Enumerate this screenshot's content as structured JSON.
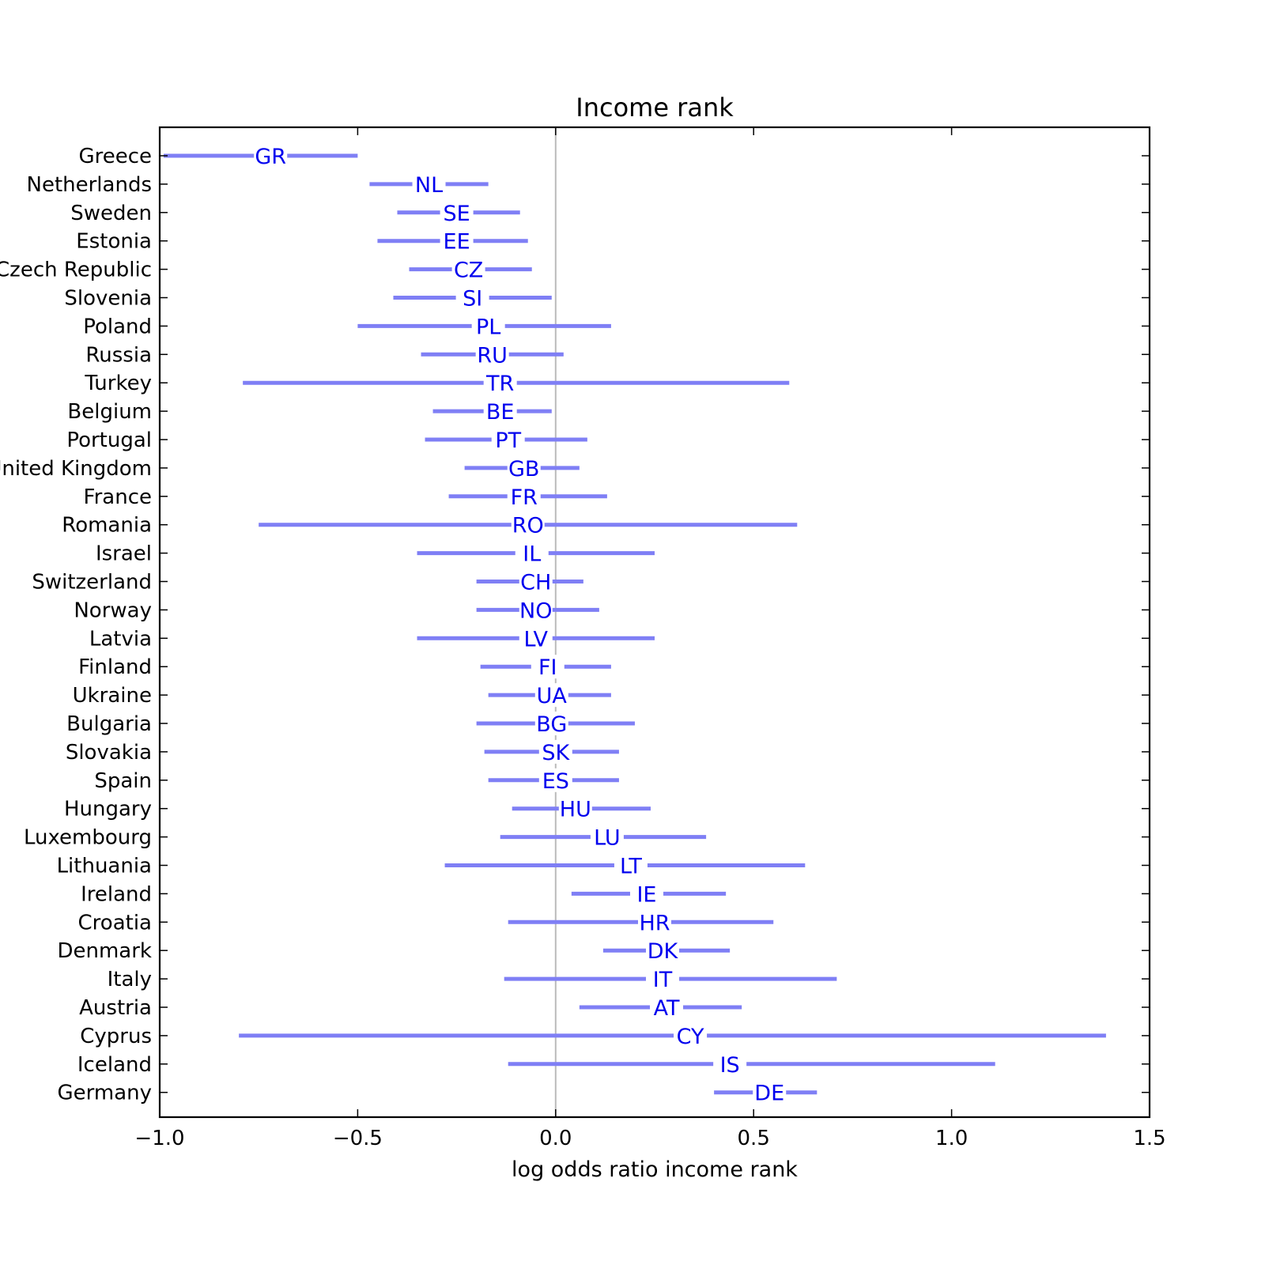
{
  "chart_data": {
    "type": "errorbar",
    "title": "Income rank",
    "xlabel": "log odds ratio income rank",
    "ylabel": "",
    "xlim": [
      -1.0,
      1.5
    ],
    "xticks": [
      -1.0,
      -0.5,
      0.0,
      0.5,
      1.0,
      1.5
    ],
    "xtick_labels": [
      "−1.0",
      "−0.5",
      "0.0",
      "0.5",
      "1.0",
      "1.5"
    ],
    "reference_line_x": 0.0,
    "colors": {
      "interval": "#7f7ff5",
      "code": "#0000ee",
      "reference": "#bbbbbb",
      "frame": "#000000"
    },
    "rows": [
      {
        "country": "Greece",
        "code": "GR",
        "low": -0.99,
        "mid": -0.72,
        "high": -0.5
      },
      {
        "country": "Netherlands",
        "code": "NL",
        "low": -0.47,
        "mid": -0.32,
        "high": -0.17
      },
      {
        "country": "Sweden",
        "code": "SE",
        "low": -0.4,
        "mid": -0.25,
        "high": -0.09
      },
      {
        "country": "Estonia",
        "code": "EE",
        "low": -0.45,
        "mid": -0.25,
        "high": -0.07
      },
      {
        "country": "Czech Republic",
        "code": "CZ",
        "low": -0.37,
        "mid": -0.22,
        "high": -0.06
      },
      {
        "country": "Slovenia",
        "code": "SI",
        "low": -0.41,
        "mid": -0.21,
        "high": -0.01
      },
      {
        "country": "Poland",
        "code": "PL",
        "low": -0.5,
        "mid": -0.17,
        "high": 0.14
      },
      {
        "country": "Russia",
        "code": "RU",
        "low": -0.34,
        "mid": -0.16,
        "high": 0.02
      },
      {
        "country": "Turkey",
        "code": "TR",
        "low": -0.79,
        "mid": -0.14,
        "high": 0.59
      },
      {
        "country": "Belgium",
        "code": "BE",
        "low": -0.31,
        "mid": -0.14,
        "high": -0.01
      },
      {
        "country": "Portugal",
        "code": "PT",
        "low": -0.33,
        "mid": -0.12,
        "high": 0.08
      },
      {
        "country": "United Kingdom",
        "code": "GB",
        "low": -0.23,
        "mid": -0.08,
        "high": 0.06
      },
      {
        "country": "France",
        "code": "FR",
        "low": -0.27,
        "mid": -0.08,
        "high": 0.13
      },
      {
        "country": "Romania",
        "code": "RO",
        "low": -0.75,
        "mid": -0.07,
        "high": 0.61
      },
      {
        "country": "Israel",
        "code": "IL",
        "low": -0.35,
        "mid": -0.06,
        "high": 0.25
      },
      {
        "country": "Switzerland",
        "code": "CH",
        "low": -0.2,
        "mid": -0.05,
        "high": 0.07
      },
      {
        "country": "Norway",
        "code": "NO",
        "low": -0.2,
        "mid": -0.05,
        "high": 0.11
      },
      {
        "country": "Latvia",
        "code": "LV",
        "low": -0.35,
        "mid": -0.05,
        "high": 0.25
      },
      {
        "country": "Finland",
        "code": "FI",
        "low": -0.19,
        "mid": -0.02,
        "high": 0.14
      },
      {
        "country": "Ukraine",
        "code": "UA",
        "low": -0.17,
        "mid": -0.01,
        "high": 0.14
      },
      {
        "country": "Bulgaria",
        "code": "BG",
        "low": -0.2,
        "mid": -0.01,
        "high": 0.2
      },
      {
        "country": "Slovakia",
        "code": "SK",
        "low": -0.18,
        "mid": 0.0,
        "high": 0.16
      },
      {
        "country": "Spain",
        "code": "ES",
        "low": -0.17,
        "mid": 0.0,
        "high": 0.16
      },
      {
        "country": "Hungary",
        "code": "HU",
        "low": -0.11,
        "mid": 0.05,
        "high": 0.24
      },
      {
        "country": "Luxembourg",
        "code": "LU",
        "low": -0.14,
        "mid": 0.13,
        "high": 0.38
      },
      {
        "country": "Lithuania",
        "code": "LT",
        "low": -0.28,
        "mid": 0.19,
        "high": 0.63
      },
      {
        "country": "Ireland",
        "code": "IE",
        "low": 0.04,
        "mid": 0.23,
        "high": 0.43
      },
      {
        "country": "Croatia",
        "code": "HR",
        "low": -0.12,
        "mid": 0.25,
        "high": 0.55
      },
      {
        "country": "Denmark",
        "code": "DK",
        "low": 0.12,
        "mid": 0.27,
        "high": 0.44
      },
      {
        "country": "Italy",
        "code": "IT",
        "low": -0.13,
        "mid": 0.27,
        "high": 0.71
      },
      {
        "country": "Austria",
        "code": "AT",
        "low": 0.06,
        "mid": 0.28,
        "high": 0.47
      },
      {
        "country": "Cyprus",
        "code": "CY",
        "low": -0.8,
        "mid": 0.34,
        "high": 1.39
      },
      {
        "country": "Iceland",
        "code": "IS",
        "low": -0.12,
        "mid": 0.44,
        "high": 1.11
      },
      {
        "country": "Germany",
        "code": "DE",
        "low": 0.4,
        "mid": 0.54,
        "high": 0.66
      }
    ]
  }
}
